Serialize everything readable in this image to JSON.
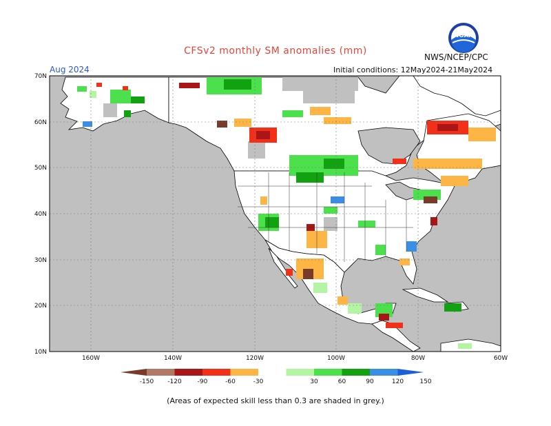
{
  "title": "CFSv2 monthly SM anomalies (mm)",
  "valid_month": "Aug 2024",
  "initial_conditions": "Initial conditions: 12May2024-21May2024",
  "agency": "NWS/NCEP/CPC",
  "logo_text": "NOAA",
  "footnote": "(Areas of expected skill less than 0.3 are shaded in grey.)",
  "lat_labels": [
    "70N",
    "60N",
    "50N",
    "40N",
    "30N",
    "20N",
    "10N"
  ],
  "lon_labels": [
    "160W",
    "140W",
    "120W",
    "100W",
    "80W",
    "60W"
  ],
  "legend": {
    "labels": [
      "-150",
      "-120",
      "-90",
      "-60",
      "-30",
      "30",
      "60",
      "90",
      "120",
      "150"
    ],
    "colors": [
      "#7a3a2a",
      "#b07a66",
      "#aa1515",
      "#f2301a",
      "#fdb545",
      "#ffffff",
      "#b4f5a4",
      "#4ce04c",
      "#11a111",
      "#3a8ee6",
      "#1c5fd6"
    ]
  },
  "colors": {
    "ocean": "#c0c0c0",
    "land": "#ffffff",
    "low_skill_grey": "#c0c0c0",
    "title": "#e8433a",
    "valid_month": "#2a55d8"
  }
}
